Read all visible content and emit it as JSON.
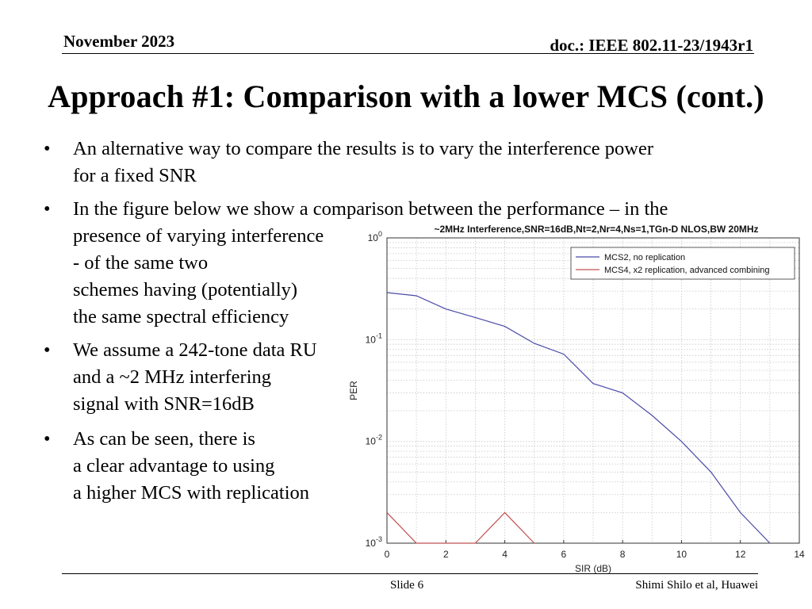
{
  "header": {
    "date": "November 2023",
    "doc": "doc.: IEEE 802.11-23/1943r1"
  },
  "title": "Approach #1: Comparison with a lower MCS (cont.)",
  "bullets": [
    {
      "lines": [
        "An alternative way to compare the results is to vary the interference power",
        "for a fixed SNR"
      ]
    },
    {
      "lines": [
        "In the figure below we show a comparison between the performance – in the",
        "presence of varying interference",
        "- of the same two",
        "schemes having (potentially)",
        "the same spectral efficiency"
      ]
    },
    {
      "lines": [
        "We assume a 242-tone data RU",
        "and a ~2 MHz interfering",
        "signal with SNR=16dB"
      ]
    },
    {
      "lines": [
        "As can be seen, there is",
        "a clear advantage to using",
        "a higher MCS with replication"
      ]
    }
  ],
  "bullet_symbol": "•",
  "footer": {
    "slide": "Slide 6",
    "author": "Shimi Shilo et al, Huawei"
  },
  "chart_data": {
    "type": "line",
    "title": "~2MHz Interference,SNR=16dB,Nt=2,Nr=4,Ns=1,TGn-D NLOS,BW 20MHz",
    "xlabel": "SIR (dB)",
    "ylabel": "PER",
    "xlim": [
      0,
      14
    ],
    "ylim": [
      0.001,
      1
    ],
    "yscale": "log",
    "x_ticks": [
      "0",
      "2",
      "4",
      "6",
      "8",
      "10",
      "12",
      "14"
    ],
    "y_ticks": [
      {
        "base": "10",
        "exp": "0"
      },
      {
        "base": "10",
        "exp": "-1"
      },
      {
        "base": "10",
        "exp": "-2"
      },
      {
        "base": "10",
        "exp": "-3"
      }
    ],
    "grid": true,
    "legend_position": "top-right",
    "series": [
      {
        "name": "MCS2, no replication",
        "color": "#4a4aa8",
        "points": [
          [
            0,
            0.29
          ],
          [
            1,
            0.27
          ],
          [
            2,
            0.2
          ],
          [
            3,
            0.165
          ],
          [
            4,
            0.135
          ],
          [
            5,
            0.092
          ],
          [
            6,
            0.072
          ],
          [
            7,
            0.037
          ],
          [
            8,
            0.03
          ],
          [
            9,
            0.018
          ],
          [
            10,
            0.01
          ],
          [
            11,
            0.005
          ],
          [
            12,
            0.002
          ],
          [
            13,
            0.001
          ]
        ]
      },
      {
        "name": "MCS4, x2 replication, advanced combining",
        "color": "#c05050",
        "points": [
          [
            0,
            0.002
          ],
          [
            1,
            0.001
          ],
          [
            3,
            0.001
          ],
          [
            4,
            0.002
          ],
          [
            5,
            0.001
          ]
        ]
      }
    ]
  }
}
